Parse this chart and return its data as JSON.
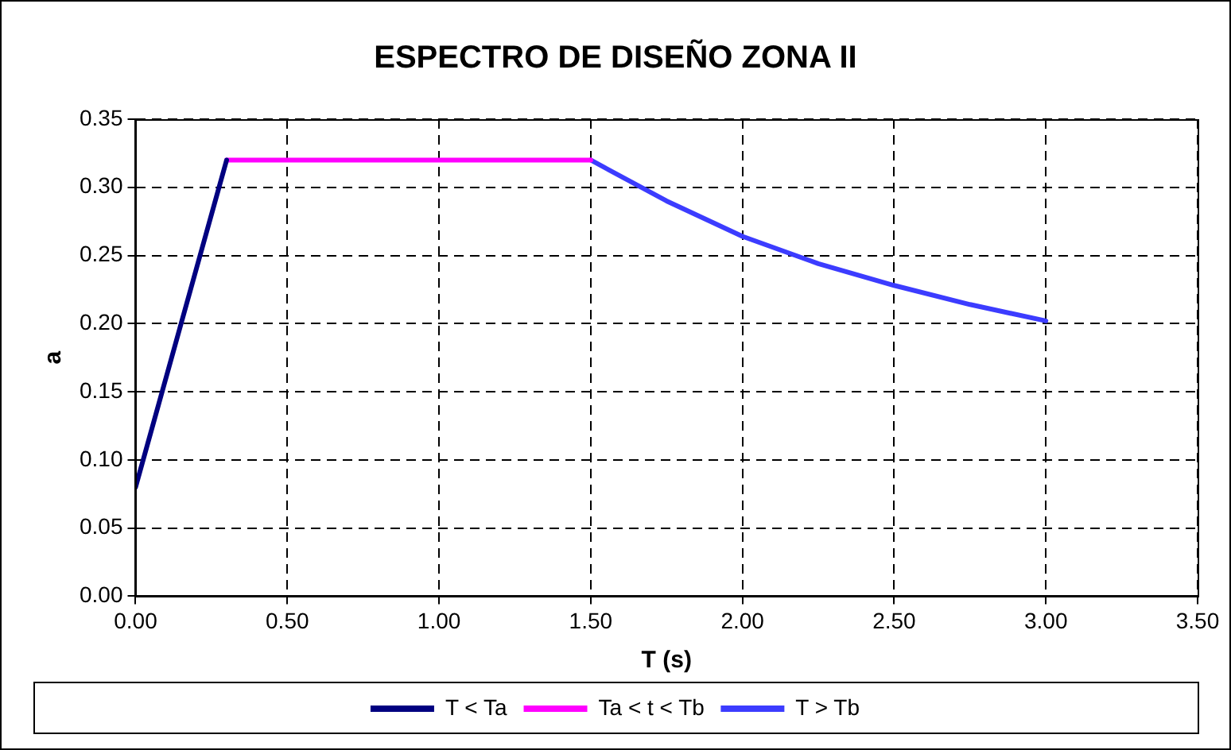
{
  "chart_data": {
    "type": "line",
    "title": "ESPECTRO DE DISEÑO ZONA II",
    "xlabel": "T (s)",
    "ylabel": "a",
    "xlim": [
      0,
      3.5
    ],
    "xticks": [
      {
        "value": 0,
        "label": "0.00"
      },
      {
        "value": 0.5,
        "label": "0.50"
      },
      {
        "value": 1,
        "label": "1.00"
      },
      {
        "value": 1.5,
        "label": "1.50"
      },
      {
        "value": 2,
        "label": "2.00"
      },
      {
        "value": 2.5,
        "label": "2.50"
      },
      {
        "value": 3,
        "label": "3.00"
      },
      {
        "value": 3.5,
        "label": "3.50"
      }
    ],
    "ylim": [
      0,
      0.35
    ],
    "yticks": [
      {
        "value": 0,
        "label": "0.00"
      },
      {
        "value": 0.05,
        "label": "0.05"
      },
      {
        "value": 0.1,
        "label": "0.10"
      },
      {
        "value": 0.15,
        "label": "0.15"
      },
      {
        "value": 0.2,
        "label": "0.20"
      },
      {
        "value": 0.25,
        "label": "0.25"
      },
      {
        "value": 0.3,
        "label": "0.30"
      },
      {
        "value": 0.35,
        "label": "0.35"
      }
    ],
    "grid": true,
    "legend": "bottom",
    "marker": "none",
    "line_style": "solid",
    "series": [
      {
        "name": "T < Ta",
        "color": "#000080",
        "x": [
          0,
          0.3
        ],
        "values": [
          0.08,
          0.32
        ]
      },
      {
        "name": "Ta < t < Tb",
        "color": "#ff00ff",
        "x": [
          0.3,
          1.5
        ],
        "values": [
          0.32,
          0.32
        ]
      },
      {
        "name": "T > Tb",
        "color": "#3c3cff",
        "x": [
          1.5,
          1.75,
          2,
          2.25,
          2.5,
          2.75,
          3
        ],
        "values": [
          0.32,
          0.29,
          0.264,
          0.244,
          0.228,
          0.214,
          0.202
        ]
      }
    ]
  }
}
